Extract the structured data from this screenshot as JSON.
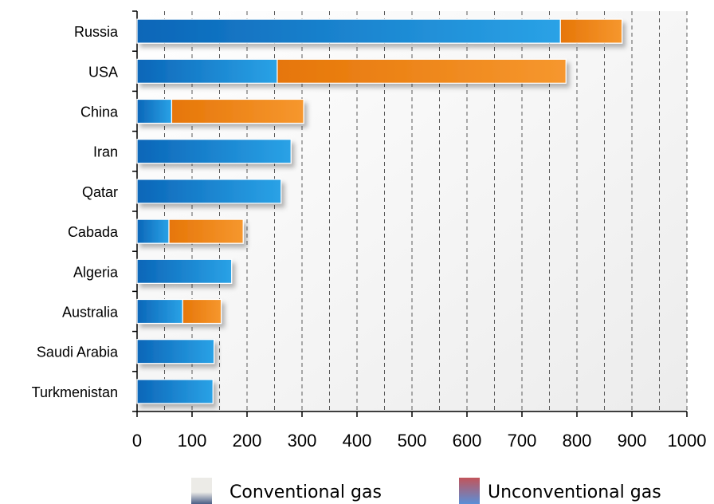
{
  "chart_data": {
    "type": "bar",
    "orientation": "horizontal",
    "stacked": true,
    "categories": [
      "Russia",
      "USA",
      "China",
      "Iran",
      "Qatar",
      "Cabada",
      "Algeria",
      "Australia",
      "Saudi Arabia",
      "Turkmenistan"
    ],
    "series": [
      {
        "name": "Conventional gas",
        "values": [
          770,
          255,
          63,
          280,
          262,
          58,
          172,
          83,
          140,
          138
        ],
        "color": "#1e88d6"
      },
      {
        "name": "Unconventional gas",
        "values": [
          112,
          525,
          240,
          0,
          0,
          135,
          0,
          70,
          0,
          0
        ],
        "color": "#f28c1e"
      }
    ],
    "x_ticks": [
      0,
      100,
      200,
      300,
      400,
      500,
      600,
      700,
      800,
      900,
      1000
    ],
    "xlim": [
      0,
      1000
    ],
    "grid": "vertical dashed",
    "legend": {
      "position": "bottom",
      "items": [
        {
          "label": "Conventional gas",
          "swatch_top": "#ecebe7",
          "swatch_bottom": "#4a5e86"
        },
        {
          "label": "Unconventional gas",
          "swatch_top": "#c2545a",
          "swatch_bottom": "#5a8fd8"
        }
      ]
    },
    "title": "",
    "xlabel": "",
    "ylabel": ""
  }
}
